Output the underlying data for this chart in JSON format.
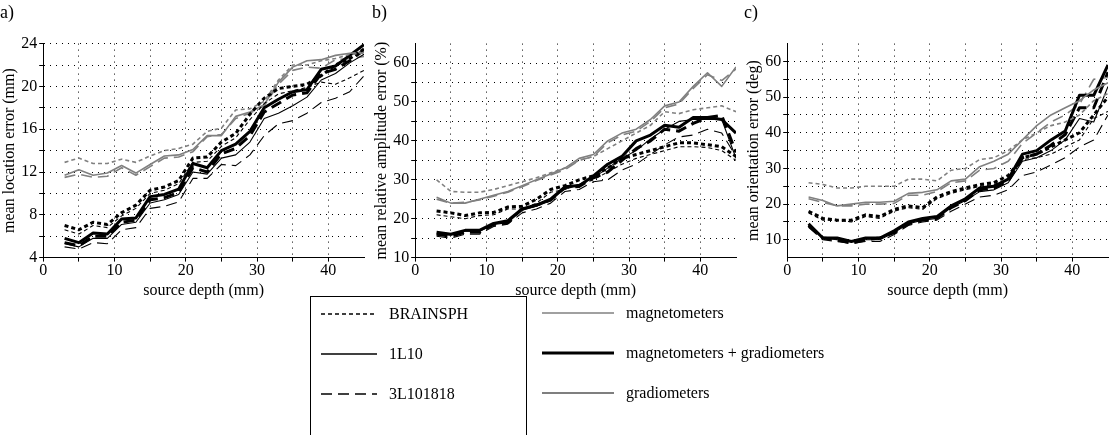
{
  "chart_data": [
    {
      "type": "line",
      "title": "a)",
      "xlabel": "source depth (mm)",
      "ylabel": "mean location error (mm)",
      "grid": true,
      "legend": false,
      "marker": "none",
      "xlim": [
        0,
        45
      ],
      "xticks": [
        0,
        {
          "value": 5,
          "label": null
        },
        10,
        {
          "value": 15,
          "label": null
        },
        20,
        {
          "value": 25,
          "label": null
        },
        30,
        {
          "value": 35,
          "label": null
        },
        40
      ],
      "ylim": [
        4,
        24
      ],
      "yticks": [
        4,
        {
          "value": 6,
          "label": null
        },
        8,
        {
          "value": 10,
          "label": null
        },
        12,
        {
          "value": 14,
          "label": null
        },
        16,
        {
          "value": 18,
          "label": null
        },
        20,
        {
          "value": 22,
          "label": null
        },
        24
      ],
      "x": [
        3,
        5,
        7,
        9,
        11,
        13,
        15,
        17,
        19,
        21,
        23,
        25,
        27,
        29,
        31,
        33,
        35,
        37,
        39,
        41,
        43,
        45
      ],
      "series": [
        {
          "color": "#808080",
          "line_style": "dotted",
          "values": [
            12.9,
            13.3,
            12.8,
            12.8,
            13.2,
            12.9,
            13.5,
            14,
            14.2,
            14.6,
            15.8,
            16.1,
            17.8,
            17.9,
            18.6,
            20.6,
            22,
            22,
            22.4,
            22.6,
            23,
            23.1
          ]
        },
        {
          "color": "#000000",
          "line_style": "dotted",
          "values": [
            7.0,
            6.6,
            7.3,
            7.1,
            8.2,
            8.9,
            10.3,
            10.6,
            11.2,
            13.3,
            13.4,
            14.8,
            15.6,
            17.4,
            18.9,
            19.8,
            20.0,
            20.2,
            21.0,
            22.0,
            22.6,
            23.5
          ]
        },
        {
          "color": "#000000",
          "line_style": "dotted",
          "values": [
            6.6,
            6.2,
            7.0,
            6.8,
            7.9,
            8.6,
            10.0,
            10.3,
            10.9,
            12.9,
            13.0,
            14.4,
            15.2,
            16.9,
            18.4,
            19.3,
            19.6,
            19.9,
            20.4,
            20.2,
            20.8,
            21.5
          ]
        },
        {
          "color": "#808080",
          "line_style": "solid",
          "values": [
            11.7,
            12.2,
            11.7,
            11.9,
            12.6,
            11.9,
            12.7,
            13.5,
            13.6,
            14.1,
            15.4,
            15.4,
            17.2,
            17.6,
            18.3,
            20.4,
            21.8,
            22.4,
            22.5,
            22.9,
            23.1,
            23.2
          ]
        },
        {
          "color": "#000000",
          "line_style": "solid",
          "values": [
            5.8,
            5.4,
            6.3,
            6.2,
            7.6,
            7.7,
            9.7,
            9.9,
            10.4,
            12.8,
            12.4,
            14.0,
            14.6,
            15.8,
            18.0,
            18.8,
            19.5,
            19.7,
            21.6,
            21.9,
            22.9,
            23.9
          ]
        },
        {
          "color": "#000000",
          "line_style": "solid",
          "values": [
            5.3,
            5.0,
            5.8,
            5.8,
            7.1,
            7.3,
            9.1,
            9.4,
            9.9,
            12.0,
            11.8,
            13.3,
            13.6,
            14.8,
            17.0,
            17.5,
            18.2,
            19.0,
            20.6,
            21.2,
            22.2,
            23.0
          ]
        },
        {
          "color": "#808080",
          "line_style": "dashed",
          "values": [
            11.5,
            11.8,
            11.5,
            11.6,
            12.4,
            11.7,
            12.5,
            13.3,
            13.4,
            13.9,
            15.3,
            15.5,
            17,
            17.5,
            18.2,
            20.2,
            21.5,
            21.8,
            21.7,
            22.5,
            22.6,
            22.8
          ]
        },
        {
          "color": "#000000",
          "line_style": "dashed",
          "values": [
            5.4,
            5.1,
            6.0,
            6.0,
            7.3,
            7.5,
            9.4,
            9.6,
            10.1,
            12.4,
            12.0,
            13.7,
            14.2,
            15.4,
            17.6,
            18.4,
            19.2,
            19.4,
            21.2,
            21.6,
            22.4,
            23.4
          ]
        },
        {
          "color": "#000000",
          "line_style": "dashed",
          "values": [
            5.0,
            4.8,
            5.4,
            5.3,
            6.6,
            6.8,
            8.6,
            8.8,
            9.2,
            11.4,
            11.4,
            12.7,
            12.6,
            13.6,
            15.4,
            16.5,
            16.8,
            17.5,
            18.5,
            18.9,
            19.5,
            21.0
          ]
        }
      ]
    },
    {
      "type": "line",
      "title": "b)",
      "xlabel": "source depth (mm)",
      "ylabel": "mean relative amplitude error (%)",
      "grid": true,
      "legend": false,
      "marker": "none",
      "annotations": [
        "BRAINSPH",
        "1L10",
        "3L101818",
        "magnetometers",
        "magnetometers + gradiometers",
        "gradiometers"
      ],
      "xlim": [
        0,
        45
      ],
      "xticks": [
        0,
        {
          "value": 5,
          "label": null
        },
        10,
        {
          "value": 15,
          "label": null
        },
        20,
        {
          "value": 25,
          "label": null
        },
        30,
        {
          "value": 35,
          "label": null
        },
        40
      ],
      "ylim": [
        10,
        65
      ],
      "yticks": [
        10,
        {
          "value": 15,
          "label": null
        },
        20,
        {
          "value": 25,
          "label": null
        },
        30,
        {
          "value": 35,
          "label": null
        },
        40,
        {
          "value": 45,
          "label": null
        },
        50,
        {
          "value": 55,
          "label": null
        },
        60
      ],
      "x": [
        3,
        5,
        7,
        9,
        11,
        13,
        15,
        17,
        19,
        21,
        23,
        25,
        27,
        29,
        31,
        33,
        35,
        37,
        39,
        41,
        43,
        45
      ],
      "series": [
        {
          "color": "#808080",
          "line_style": "dotted",
          "values": [
            30,
            27,
            26.8,
            26.8,
            27.5,
            28.5,
            29.5,
            30.5,
            31.8,
            33,
            35,
            36,
            38,
            40,
            42,
            44,
            47.5,
            47,
            48,
            48.5,
            49,
            47.5
          ]
        },
        {
          "color": "#000000",
          "line_style": "dotted",
          "values": [
            22,
            21.5,
            20.8,
            21.5,
            21.6,
            23,
            23.2,
            25,
            27.5,
            28.5,
            30,
            31,
            33,
            35.5,
            36.5,
            37.5,
            38.5,
            39.5,
            39.5,
            39,
            38.5,
            36
          ]
        },
        {
          "color": "#000000",
          "line_style": "dotted",
          "values": [
            21,
            20.5,
            20,
            20.8,
            21,
            22.5,
            22.5,
            24,
            26.8,
            27.5,
            28.8,
            30,
            32,
            34,
            35.5,
            36.5,
            37.5,
            38.5,
            38.5,
            38.3,
            37.5,
            35
          ]
        },
        {
          "color": "#808080",
          "line_style": "solid",
          "values": [
            25.5,
            24,
            24,
            25,
            26,
            27,
            28.5,
            30,
            31.5,
            33,
            35.5,
            36.5,
            40,
            42,
            43,
            45.5,
            49,
            50,
            54,
            57.5,
            54,
            59
          ]
        },
        {
          "color": "#000000",
          "line_style": "solid",
          "values": [
            16.5,
            16,
            17,
            17,
            18.8,
            19.5,
            22.5,
            23.5,
            25,
            28.2,
            28.5,
            31,
            34,
            36,
            40,
            41.5,
            44,
            43.5,
            46,
            46,
            45.5,
            42
          ]
        },
        {
          "color": "#000000",
          "line_style": "solid",
          "values": [
            16,
            15.8,
            16.8,
            16.8,
            18.5,
            19,
            22.2,
            23.2,
            24.6,
            27.8,
            28.8,
            30.5,
            33,
            35.5,
            37.5,
            40.5,
            43,
            45,
            45.5,
            45.5,
            45.5,
            35.5
          ]
        },
        {
          "color": "#808080",
          "line_style": "dashed",
          "values": [
            25,
            24,
            24.2,
            24.8,
            25.8,
            26.8,
            28.2,
            29.8,
            31.2,
            32.6,
            35,
            36,
            39.5,
            41.5,
            42.5,
            45,
            48.5,
            49.5,
            53.5,
            57,
            55.5,
            58.5
          ]
        },
        {
          "color": "#000000",
          "line_style": "dashed",
          "values": [
            16,
            15.5,
            16.5,
            16.5,
            18.5,
            19,
            22.5,
            23.5,
            24.8,
            28,
            28.3,
            30.5,
            32,
            35,
            38,
            40,
            43,
            42.5,
            44.5,
            46,
            46.5,
            37
          ]
        },
        {
          "color": "#000000",
          "line_style": "dashed",
          "values": [
            15.5,
            15,
            16,
            16,
            18,
            18.6,
            21.5,
            22.5,
            24,
            27,
            27.5,
            29.5,
            30,
            32.5,
            34,
            36.5,
            39,
            41,
            41.5,
            43,
            42,
            36
          ]
        }
      ]
    },
    {
      "type": "line",
      "title": "c)",
      "xlabel": "source depth (mm)",
      "ylabel": "mean orientation error (deg)",
      "grid": true,
      "legend": false,
      "marker": "none",
      "xlim": [
        0,
        45
      ],
      "xticks": [
        0,
        {
          "value": 5,
          "label": null
        },
        10,
        {
          "value": 15,
          "label": null
        },
        20,
        {
          "value": 25,
          "label": null
        },
        30,
        {
          "value": 35,
          "label": null
        },
        40
      ],
      "ylim": [
        5,
        65
      ],
      "yticks": [
        10,
        {
          "value": 15,
          "label": null
        },
        20,
        {
          "value": 25,
          "label": null
        },
        30,
        {
          "value": 35,
          "label": null
        },
        40,
        {
          "value": 45,
          "label": null
        },
        50,
        {
          "value": 55,
          "label": null
        },
        60
      ],
      "x": [
        3,
        5,
        7,
        9,
        11,
        13,
        15,
        17,
        19,
        21,
        23,
        25,
        27,
        29,
        31,
        33,
        35,
        37,
        39,
        41,
        43,
        45
      ],
      "series": [
        {
          "color": "#808080",
          "line_style": "dotted",
          "values": [
            26,
            25.5,
            24.5,
            24.5,
            25,
            25,
            25,
            27,
            27,
            26.5,
            29.5,
            30,
            32.5,
            33,
            35,
            38,
            40,
            42,
            43,
            45,
            49,
            51
          ]
        },
        {
          "color": "#000000",
          "line_style": "dotted",
          "values": [
            18,
            16,
            15.5,
            15.5,
            17,
            16.5,
            18.5,
            19.5,
            19,
            22,
            23.5,
            24.5,
            25.5,
            26,
            28,
            33,
            34,
            36,
            38,
            40,
            45,
            50
          ]
        },
        {
          "color": "#000000",
          "line_style": "dotted",
          "values": [
            17.5,
            15.5,
            15.5,
            15,
            16.5,
            16,
            18,
            19,
            18.5,
            21.5,
            23,
            24,
            25,
            25.5,
            27,
            32.5,
            33,
            34,
            36,
            38,
            44,
            46
          ]
        },
        {
          "color": "#808080",
          "line_style": "solid",
          "values": [
            22,
            21,
            19.5,
            20,
            20.5,
            20.5,
            20.8,
            23,
            23.3,
            24,
            26.5,
            27,
            30.5,
            32,
            34,
            38,
            42,
            45,
            47,
            49,
            52,
            54
          ]
        },
        {
          "color": "#000000",
          "line_style": "solid",
          "values": [
            14.5,
            10.5,
            10.5,
            9.5,
            10.5,
            10.5,
            12.5,
            15,
            16,
            16.5,
            19.5,
            21.5,
            24.5,
            25,
            27,
            34,
            35,
            38,
            40.5,
            50.5,
            50.5,
            59
          ]
        },
        {
          "color": "#000000",
          "line_style": "solid",
          "values": [
            14,
            10.5,
            10,
            9.5,
            10,
            10,
            12,
            14.5,
            15.5,
            16,
            19,
            21,
            23.5,
            24,
            26,
            32,
            33,
            35,
            38,
            44,
            43,
            53
          ]
        },
        {
          "color": "#808080",
          "line_style": "dashed",
          "values": [
            21.5,
            20.5,
            19.5,
            19.5,
            20,
            20,
            20.2,
            22.5,
            22.5,
            23.5,
            26,
            26.5,
            29.5,
            30,
            32,
            37,
            40,
            43,
            45,
            48,
            55,
            55.5
          ]
        },
        {
          "color": "#000000",
          "line_style": "dashed",
          "values": [
            14,
            10.5,
            10,
            9,
            10,
            10.5,
            12,
            14.5,
            15.5,
            16,
            19,
            21,
            24,
            24.5,
            26.5,
            33,
            34,
            36.5,
            39.5,
            47,
            47,
            57
          ]
        },
        {
          "color": "#000000",
          "line_style": "dashed",
          "values": [
            13.5,
            10,
            9.5,
            9,
            9.5,
            9.5,
            11.5,
            14,
            15,
            15.5,
            18,
            20,
            22,
            22.5,
            24,
            28,
            29,
            31,
            33,
            36,
            38,
            45
          ]
        }
      ]
    }
  ]
}
